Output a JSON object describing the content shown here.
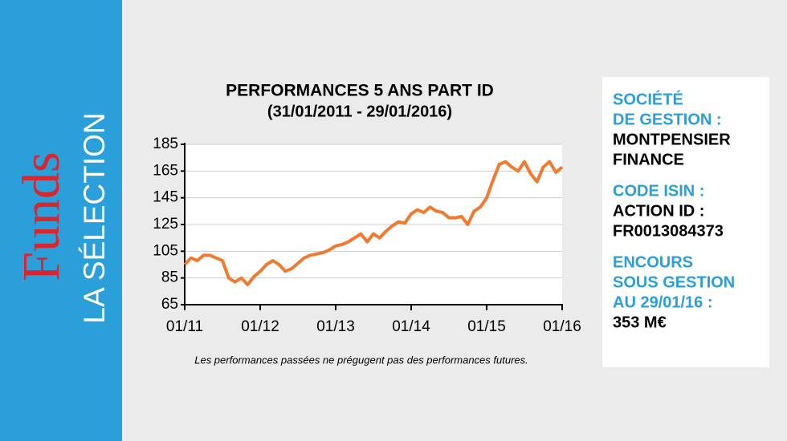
{
  "brand": {
    "name": "Funds",
    "subtitle": "LA SÉLECTION"
  },
  "chart_data": {
    "type": "line",
    "title": "PERFORMANCES 5 ANS PART ID",
    "subtitle": "(31/01/2011 - 29/01/2016)",
    "note": "Les performances passées ne prégugent pas des performances futures.",
    "x": [
      2011,
      2011.083,
      2011.167,
      2011.25,
      2011.333,
      2011.417,
      2011.5,
      2011.583,
      2011.667,
      2011.75,
      2011.833,
      2011.917,
      2012,
      2012.083,
      2012.167,
      2012.25,
      2012.333,
      2012.417,
      2012.5,
      2012.583,
      2012.667,
      2012.75,
      2012.833,
      2012.917,
      2013,
      2013.083,
      2013.167,
      2013.25,
      2013.333,
      2013.417,
      2013.5,
      2013.583,
      2013.667,
      2013.75,
      2013.833,
      2013.917,
      2014,
      2014.083,
      2014.167,
      2014.25,
      2014.333,
      2014.417,
      2014.5,
      2014.583,
      2014.667,
      2014.75,
      2014.833,
      2014.917,
      2015,
      2015.083,
      2015.167,
      2015.25,
      2015.333,
      2015.417,
      2015.5,
      2015.583,
      2015.667,
      2015.75,
      2015.833,
      2015.917,
      2016
    ],
    "series": [
      {
        "color": "#f07a30",
        "values": [
          95,
          100,
          98,
          102,
          102,
          100,
          98,
          85,
          82,
          85,
          80,
          86,
          90,
          95,
          98,
          95,
          90,
          92,
          96,
          100,
          102,
          103,
          104,
          106,
          109,
          110,
          112,
          115,
          118,
          112,
          118,
          115,
          120,
          124,
          127,
          126,
          133,
          136,
          134,
          138,
          135,
          134,
          130,
          130,
          131,
          125,
          135,
          138,
          145,
          158,
          170,
          172,
          168,
          165,
          172,
          163,
          157,
          168,
          172,
          164,
          168
        ]
      }
    ],
    "xlim": [
      2011,
      2016
    ],
    "xticks": [
      {
        "value": 2011,
        "label": "01/11"
      },
      {
        "value": 2012,
        "label": "01/12"
      },
      {
        "value": 2013,
        "label": "01/13"
      },
      {
        "value": 2014,
        "label": "01/14"
      },
      {
        "value": 2015,
        "label": "01/15"
      },
      {
        "value": 2016,
        "label": "01/16"
      }
    ],
    "ylim": [
      65,
      185
    ],
    "yticks": [
      65,
      85,
      105,
      125,
      145,
      165,
      185
    ],
    "grid": true
  },
  "panel": {
    "items": [
      {
        "label": [
          "SOCIÉTÉ",
          "DE GESTION :"
        ],
        "value": [
          "MONTPENSIER",
          "FINANCE"
        ]
      },
      {
        "label": [
          "CODE ISIN :"
        ],
        "value": [
          "ACTION ID :",
          "FR0013084373"
        ]
      },
      {
        "label": [
          "ENCOURS",
          "SOUS GESTION",
          "AU 29/01/16 :"
        ],
        "value": [
          "353 M€"
        ]
      }
    ]
  }
}
